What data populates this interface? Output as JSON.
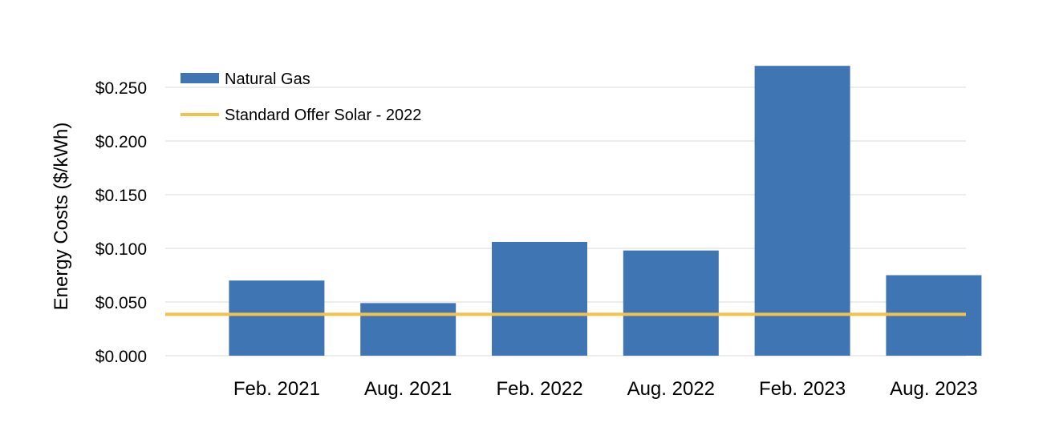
{
  "chart_data": {
    "type": "bar",
    "title": "",
    "xlabel": "",
    "ylabel": "Energy Costs ($/kWh)",
    "categories": [
      "Feb. 2021",
      "Aug. 2021",
      "Feb. 2022",
      "Aug. 2022",
      "Feb. 2023",
      "Aug. 2023"
    ],
    "series": [
      {
        "name": "Natural Gas",
        "type": "bar",
        "color": "#4075b3",
        "values": [
          0.07,
          0.049,
          0.106,
          0.098,
          0.27,
          0.075
        ]
      }
    ],
    "reference_lines": [
      {
        "name": "Standard Offer Solar - 2022",
        "value": 0.049,
        "color": "#f2c24a"
      }
    ],
    "ylim": [
      0,
      0.27
    ],
    "yticks": [
      0.0,
      0.05,
      0.1,
      0.15,
      0.2,
      0.25
    ],
    "ytick_labels": [
      "$0.000",
      "$0.050",
      "$0.100",
      "$0.150",
      "$0.200",
      "$0.250"
    ],
    "grid": true,
    "legend_position": "top-left"
  }
}
